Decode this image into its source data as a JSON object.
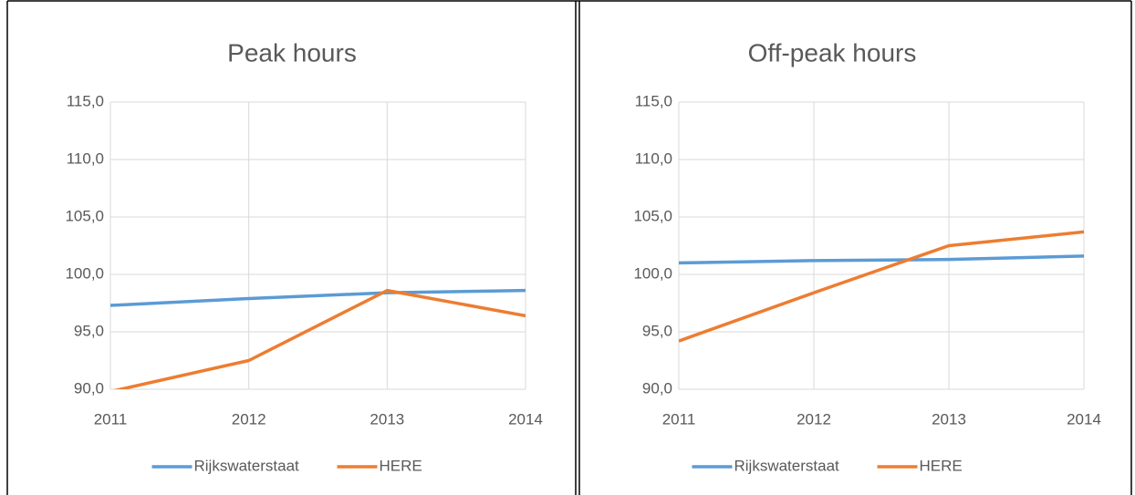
{
  "chart_data": [
    {
      "type": "line",
      "title": "Peak hours",
      "categories": [
        "2011",
        "2012",
        "2013",
        "2014"
      ],
      "series": [
        {
          "name": "Rijkswaterstaat",
          "color": "#5b9bd5",
          "values": [
            97.3,
            97.9,
            98.4,
            98.6
          ]
        },
        {
          "name": "HERE",
          "color": "#ed7d31",
          "values": [
            89.8,
            92.5,
            98.6,
            96.4
          ]
        }
      ],
      "ylim": [
        90,
        115
      ],
      "yticks": [
        {
          "value": 90,
          "label": "90,0"
        },
        {
          "value": 95,
          "label": "95,0"
        },
        {
          "value": 100,
          "label": "100,0"
        },
        {
          "value": 105,
          "label": "105,0"
        },
        {
          "value": 110,
          "label": "110,0"
        },
        {
          "value": 115,
          "label": "115,0"
        }
      ],
      "grid": true,
      "legend": "bottom"
    },
    {
      "type": "line",
      "title": "Off-peak hours",
      "categories": [
        "2011",
        "2012",
        "2013",
        "2014"
      ],
      "series": [
        {
          "name": "Rijkswaterstaat",
          "color": "#5b9bd5",
          "values": [
            101.0,
            101.2,
            101.3,
            101.6
          ]
        },
        {
          "name": "HERE",
          "color": "#ed7d31",
          "values": [
            94.2,
            98.4,
            102.5,
            103.7
          ]
        }
      ],
      "ylim": [
        90,
        115
      ],
      "yticks": [
        {
          "value": 90,
          "label": "90,0"
        },
        {
          "value": 95,
          "label": "95,0"
        },
        {
          "value": 100,
          "label": "100,0"
        },
        {
          "value": 105,
          "label": "105,0"
        },
        {
          "value": 110,
          "label": "110,0"
        },
        {
          "value": 115,
          "label": "115,0"
        }
      ],
      "grid": true,
      "legend": "bottom"
    }
  ]
}
